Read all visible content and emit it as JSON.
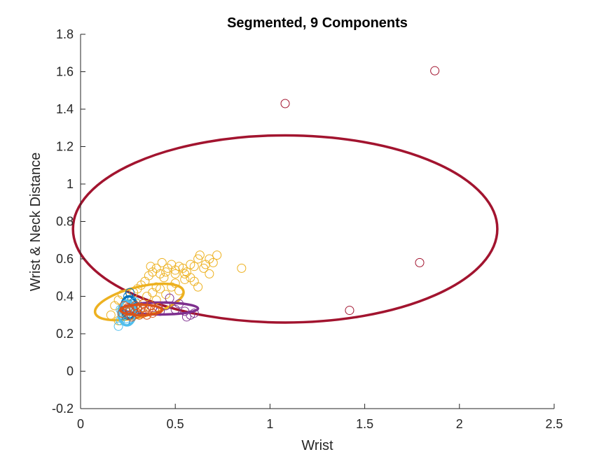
{
  "chart_data": {
    "type": "scatter",
    "title": "Segmented, 9 Components",
    "xlabel": "Wrist",
    "ylabel": "Wrist & Neck Distance",
    "xlim": [
      0,
      2.5
    ],
    "ylim": [
      -0.2,
      1.8
    ],
    "xticks": [
      "0",
      "0.5",
      "1",
      "1.5",
      "2",
      "2.5"
    ],
    "yticks": [
      "-0.2",
      "0",
      "0.2",
      "0.4",
      "0.6",
      "0.8",
      "1",
      "1.2",
      "1.4",
      "1.6",
      "1.8"
    ],
    "grid": false,
    "colors": {
      "crimson": "#A2142F",
      "gold": "#EDB120",
      "purple": "#7E2F8E",
      "blue": "#0072BD",
      "cyan": "#4DBEEE",
      "orange": "#D95319",
      "axis": "#262626"
    },
    "series": [
      {
        "color": "#A2142F",
        "points": [
          [
            1.08,
            1.43
          ],
          [
            1.87,
            1.605
          ],
          [
            1.79,
            0.58
          ],
          [
            1.42,
            0.325
          ]
        ],
        "ellipse": {
          "cx": 1.08,
          "cy": 0.76,
          "rx_val": 1.12,
          "ry_val": 0.5,
          "rot_deg": 0
        }
      },
      {
        "color": "#EDB120",
        "points": [
          [
            0.2,
            0.38
          ],
          [
            0.22,
            0.41
          ],
          [
            0.25,
            0.36
          ],
          [
            0.28,
            0.42
          ],
          [
            0.3,
            0.44
          ],
          [
            0.32,
            0.46
          ],
          [
            0.34,
            0.48
          ],
          [
            0.36,
            0.51
          ],
          [
            0.38,
            0.53
          ],
          [
            0.4,
            0.55
          ],
          [
            0.42,
            0.52
          ],
          [
            0.44,
            0.5
          ],
          [
            0.46,
            0.55
          ],
          [
            0.48,
            0.57
          ],
          [
            0.5,
            0.54
          ],
          [
            0.52,
            0.56
          ],
          [
            0.54,
            0.55
          ],
          [
            0.56,
            0.53
          ],
          [
            0.58,
            0.57
          ],
          [
            0.6,
            0.56
          ],
          [
            0.62,
            0.6
          ],
          [
            0.63,
            0.62
          ],
          [
            0.65,
            0.55
          ],
          [
            0.68,
            0.6
          ],
          [
            0.7,
            0.58
          ],
          [
            0.72,
            0.62
          ],
          [
            0.35,
            0.4
          ],
          [
            0.38,
            0.42
          ],
          [
            0.4,
            0.38
          ],
          [
            0.42,
            0.44
          ],
          [
            0.45,
            0.41
          ],
          [
            0.48,
            0.45
          ],
          [
            0.5,
            0.47
          ],
          [
            0.52,
            0.43
          ],
          [
            0.55,
            0.49
          ],
          [
            0.58,
            0.5
          ],
          [
            0.6,
            0.48
          ],
          [
            0.62,
            0.45
          ],
          [
            0.3,
            0.36
          ],
          [
            0.33,
            0.34
          ],
          [
            0.26,
            0.32
          ],
          [
            0.24,
            0.3
          ],
          [
            0.37,
            0.56
          ],
          [
            0.43,
            0.58
          ],
          [
            0.85,
            0.55
          ],
          [
            0.18,
            0.35
          ],
          [
            0.2,
            0.27
          ],
          [
            0.16,
            0.3
          ],
          [
            0.45,
            0.53
          ],
          [
            0.55,
            0.52
          ],
          [
            0.66,
            0.57
          ],
          [
            0.68,
            0.52
          ],
          [
            0.5,
            0.52
          ],
          [
            0.4,
            0.45
          ]
        ],
        "ellipse": {
          "cx": 0.31,
          "cy": 0.37,
          "rx_val": 0.24,
          "ry_val": 0.08,
          "rot_deg": -14
        }
      },
      {
        "color": "#7E2F8E",
        "points": [
          [
            0.45,
            0.35
          ],
          [
            0.5,
            0.33
          ],
          [
            0.55,
            0.32
          ],
          [
            0.58,
            0.3
          ],
          [
            0.6,
            0.31
          ],
          [
            0.47,
            0.39
          ],
          [
            0.38,
            0.34
          ],
          [
            0.42,
            0.32
          ],
          [
            0.52,
            0.36
          ],
          [
            0.56,
            0.29
          ]
        ],
        "ellipse": {
          "cx": 0.42,
          "cy": 0.335,
          "rx_val": 0.2,
          "ry_val": 0.032,
          "rot_deg": 0
        }
      },
      {
        "color": "#0072BD",
        "points": [
          [
            0.26,
            0.42
          ],
          [
            0.25,
            0.4
          ],
          [
            0.28,
            0.36
          ],
          [
            0.22,
            0.3
          ],
          [
            0.3,
            0.33
          ],
          [
            0.24,
            0.27
          ],
          [
            0.27,
            0.38
          ]
        ],
        "ellipse": {
          "cx": 0.255,
          "cy": 0.34,
          "rx_val": 0.04,
          "ry_val": 0.06,
          "rot_deg": 0
        }
      },
      {
        "color": "#4DBEEE",
        "points": [
          [
            0.2,
            0.24
          ],
          [
            0.21,
            0.27
          ],
          [
            0.22,
            0.29
          ],
          [
            0.23,
            0.31
          ],
          [
            0.24,
            0.28
          ],
          [
            0.25,
            0.33
          ],
          [
            0.26,
            0.3
          ],
          [
            0.27,
            0.35
          ],
          [
            0.28,
            0.32
          ],
          [
            0.29,
            0.37
          ],
          [
            0.21,
            0.33
          ],
          [
            0.24,
            0.36
          ]
        ],
        "ellipse": {
          "cx": 0.245,
          "cy": 0.31,
          "rx_val": 0.045,
          "ry_val": 0.065,
          "rot_deg": 0
        }
      },
      {
        "color": "#D95319",
        "points": [
          [
            0.22,
            0.31
          ],
          [
            0.24,
            0.32
          ],
          [
            0.26,
            0.3
          ],
          [
            0.28,
            0.33
          ],
          [
            0.3,
            0.31
          ],
          [
            0.32,
            0.34
          ],
          [
            0.34,
            0.32
          ],
          [
            0.36,
            0.33
          ],
          [
            0.38,
            0.31
          ],
          [
            0.25,
            0.34
          ],
          [
            0.27,
            0.29
          ],
          [
            0.29,
            0.35
          ],
          [
            0.31,
            0.3
          ],
          [
            0.33,
            0.36
          ],
          [
            0.35,
            0.3
          ],
          [
            0.23,
            0.35
          ],
          [
            0.3,
            0.34
          ],
          [
            0.37,
            0.35
          ],
          [
            0.39,
            0.33
          ],
          [
            0.41,
            0.34
          ],
          [
            0.26,
            0.33
          ],
          [
            0.33,
            0.31
          ]
        ],
        "ellipse": {
          "cx": 0.32,
          "cy": 0.327,
          "rx_val": 0.11,
          "ry_val": 0.028,
          "rot_deg": 0
        }
      }
    ]
  }
}
